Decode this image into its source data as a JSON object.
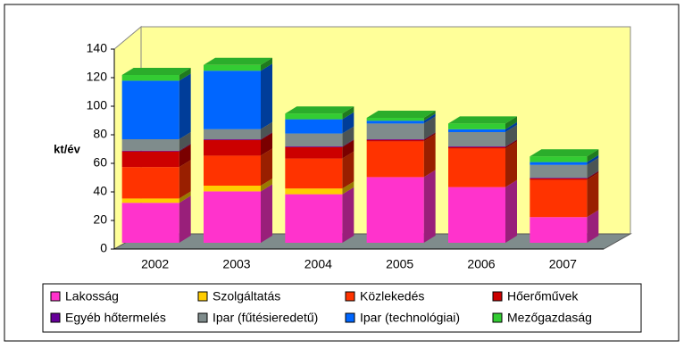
{
  "chart_data": {
    "type": "bar3d",
    "stacked": true,
    "y_label": "kt/év",
    "categories": [
      "2002",
      "2003",
      "2004",
      "2005",
      "2006",
      "2007"
    ],
    "series": [
      {
        "name": "Lakosság",
        "color": "#ff33cc",
        "values": [
          28,
          36,
          34,
          46,
          39,
          18
        ]
      },
      {
        "name": "Szolgáltatás",
        "color": "#ffcc00",
        "values": [
          3,
          4,
          4,
          0,
          0,
          0
        ]
      },
      {
        "name": "Közlekedés",
        "color": "#ff3300",
        "values": [
          22,
          21,
          21,
          25,
          27,
          26
        ]
      },
      {
        "name": "Hőerőművek",
        "color": "#cc0000",
        "values": [
          11,
          11,
          8,
          1,
          1,
          1
        ]
      },
      {
        "name": "Egyéb hőtermelés",
        "color": "#660099",
        "values": [
          0.5,
          0.5,
          0.5,
          0.5,
          0.5,
          0.5
        ]
      },
      {
        "name": "Ipar (fűtésieredetű)",
        "color": "#7f8c8c",
        "values": [
          8,
          7,
          9,
          11,
          10,
          9
        ]
      },
      {
        "name": "Ipar (technológiai)",
        "color": "#0066ff",
        "values": [
          41,
          41,
          10,
          2,
          2,
          2
        ]
      },
      {
        "name": "Mezőgazdaság",
        "color": "#33cc33",
        "values": [
          4,
          4,
          4,
          2,
          4,
          4
        ]
      }
    ],
    "ylim": [
      0,
      140
    ],
    "yticks": [
      0,
      20,
      40,
      60,
      80,
      100,
      120,
      140
    ],
    "wall_color": "#ffff99",
    "floor_color": "#7f8c8c",
    "grid": false
  }
}
